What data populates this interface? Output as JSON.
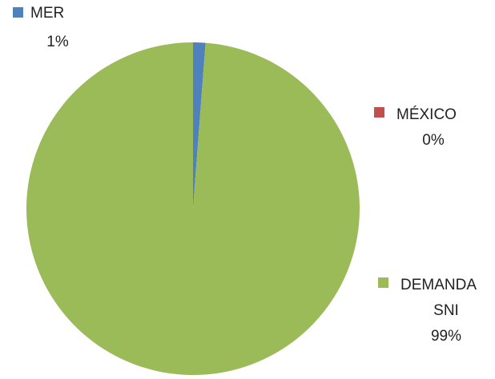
{
  "chart_data": {
    "type": "pie",
    "title": "",
    "slices": [
      {
        "label": "MER",
        "percent_label": "1%",
        "value": 1.2,
        "color": "#4f81bd"
      },
      {
        "label": "MÉXICO",
        "percent_label": "0%",
        "value": 0.0,
        "color": "#c0504d"
      },
      {
        "label": "DEMANDA SNI",
        "label_lines": [
          "DEMANDA",
          "SNI"
        ],
        "percent_label": "99%",
        "value": 98.8,
        "color": "#9bbb59"
      }
    ],
    "legend": "data labels with legend keys beside each slice"
  }
}
